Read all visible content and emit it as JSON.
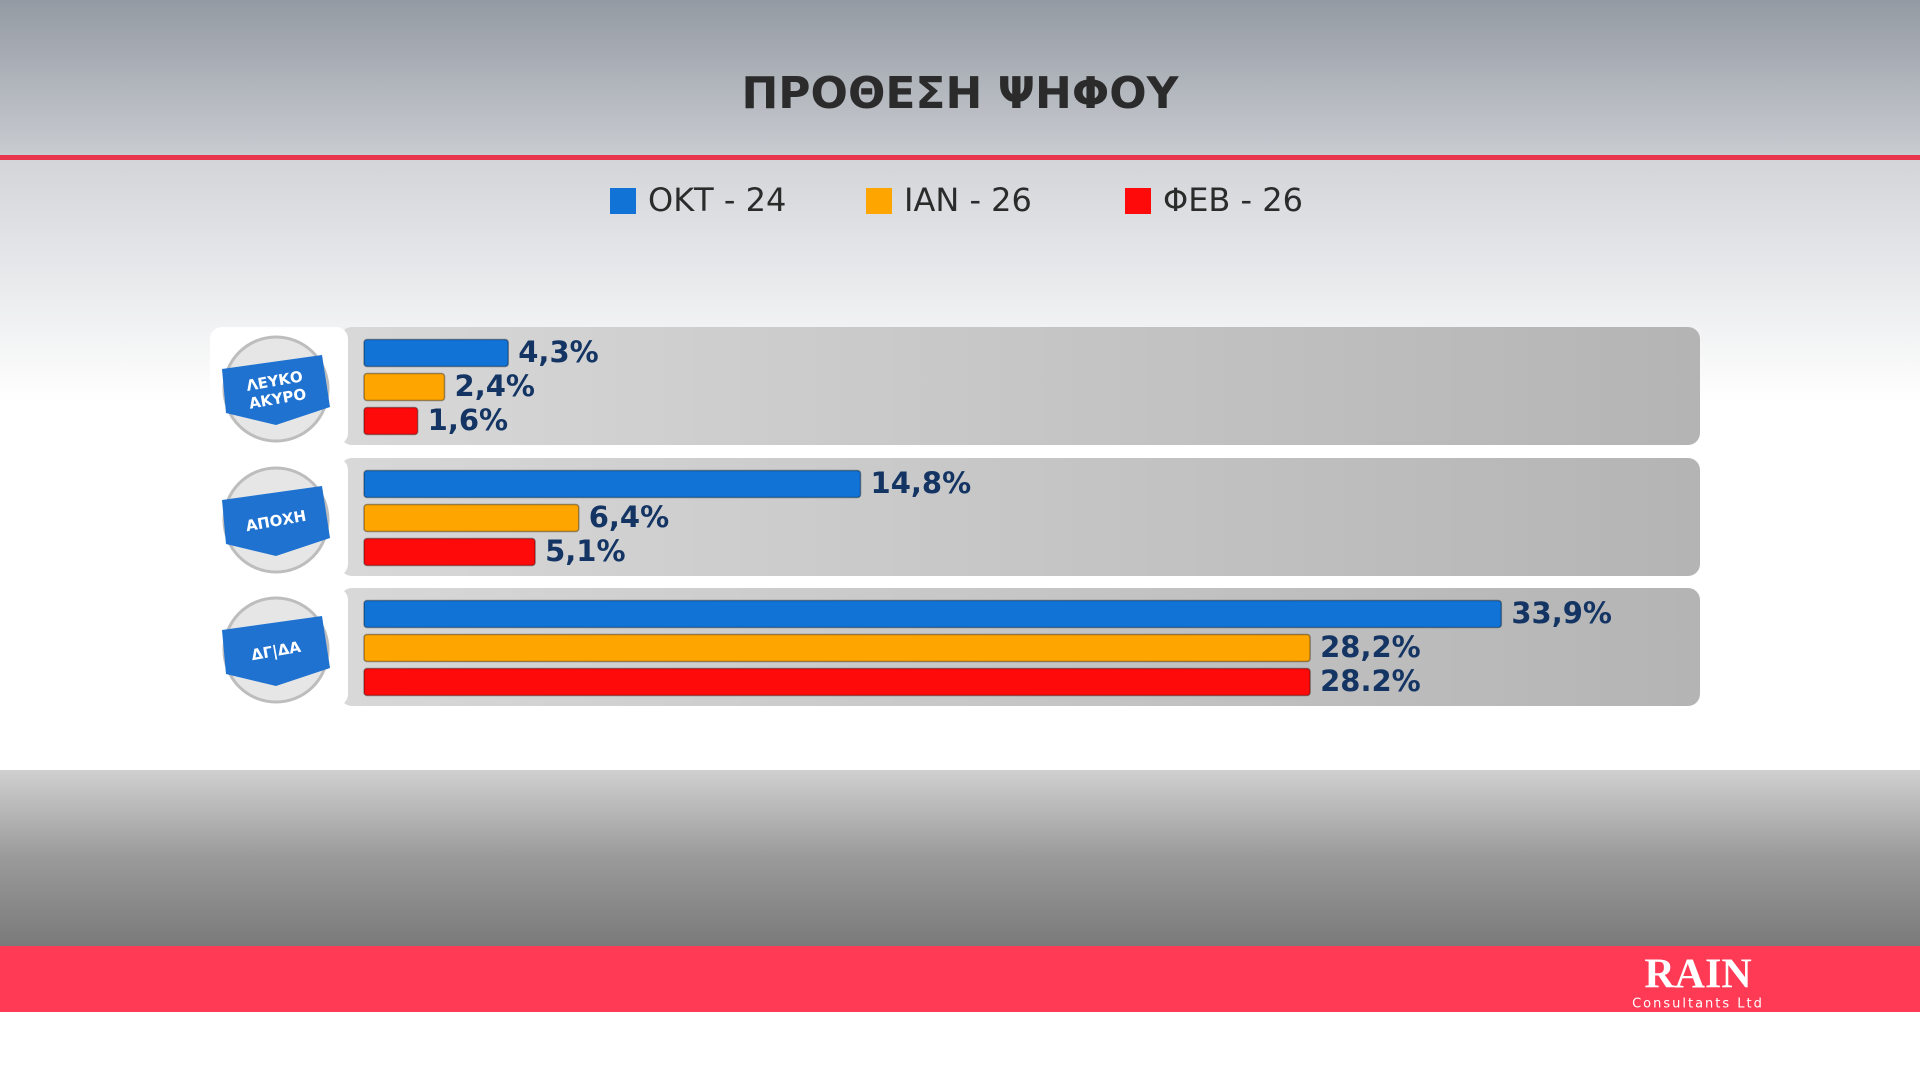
{
  "chart_data": {
    "type": "bar",
    "orientation": "horizontal",
    "title": "ΠΡΟΘΕΣΗ ΨΗΦΟΥ",
    "categories": [
      "ΛΕΥΚΟ ΑΚΥΡΟ",
      "ΑΠΟΧΗ",
      "ΔΓ|ΔΑ"
    ],
    "series": [
      {
        "name": "ΟΚΤ - 24",
        "color": "#1273d6",
        "values": [
          4.3,
          14.8,
          33.9
        ],
        "value_labels": [
          "4,3%",
          "14,8%",
          "33,9%"
        ]
      },
      {
        "name": "ΙΑΝ - 26",
        "color": "#ffa500",
        "values": [
          2.4,
          6.4,
          28.2
        ],
        "value_labels": [
          "2,4%",
          "6,4%",
          "28,2%"
        ]
      },
      {
        "name": "ΦΕΒ - 26",
        "color": "#ff0a0a",
        "values": [
          1.6,
          5.1,
          28.2
        ],
        "value_labels": [
          "1,6%",
          "5,1%",
          "28.2%"
        ]
      }
    ]
  },
  "logo": {
    "brand": "RAIN",
    "tagline": "Consultants Ltd"
  }
}
